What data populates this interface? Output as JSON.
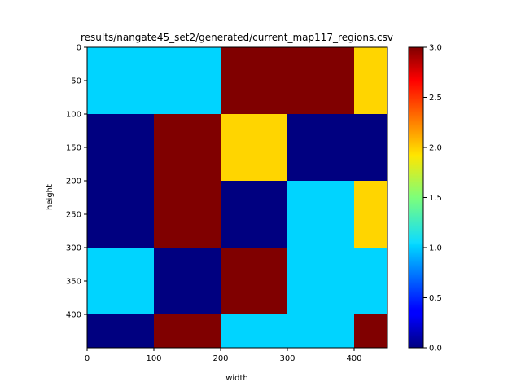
{
  "chart_data": {
    "type": "heatmap",
    "title": "results/nangate45_set2/generated/current_map117_regions.csv",
    "xlabel": "width",
    "ylabel": "height",
    "x_edges": [
      0,
      100,
      200,
      300,
      400,
      450
    ],
    "y_edges": [
      0,
      100,
      200,
      300,
      400,
      450
    ],
    "xlim": [
      0,
      450
    ],
    "ylim": [
      450,
      0
    ],
    "x_ticks": [
      0,
      100,
      200,
      300,
      400
    ],
    "x_tick_labels": [
      "0",
      "100",
      "200",
      "300",
      "400"
    ],
    "y_ticks": [
      0,
      50,
      100,
      150,
      200,
      250,
      300,
      350,
      400
    ],
    "y_tick_labels": [
      "0",
      "50",
      "100",
      "150",
      "200",
      "250",
      "300",
      "350",
      "400"
    ],
    "values": [
      [
        1,
        1,
        3,
        3,
        2
      ],
      [
        0,
        3,
        2,
        0,
        0
      ],
      [
        0,
        3,
        0,
        1,
        2
      ],
      [
        1,
        0,
        3,
        1,
        1
      ],
      [
        0,
        3,
        1,
        1,
        3
      ]
    ],
    "colormap": "jet",
    "vmin": 0,
    "vmax": 3,
    "colorbar_ticks": [
      0.0,
      0.5,
      1.0,
      1.5,
      2.0,
      2.5,
      3.0
    ],
    "colorbar_tick_labels": [
      "0.0",
      "0.5",
      "1.0",
      "1.5",
      "2.0",
      "2.5",
      "3.0"
    ]
  }
}
